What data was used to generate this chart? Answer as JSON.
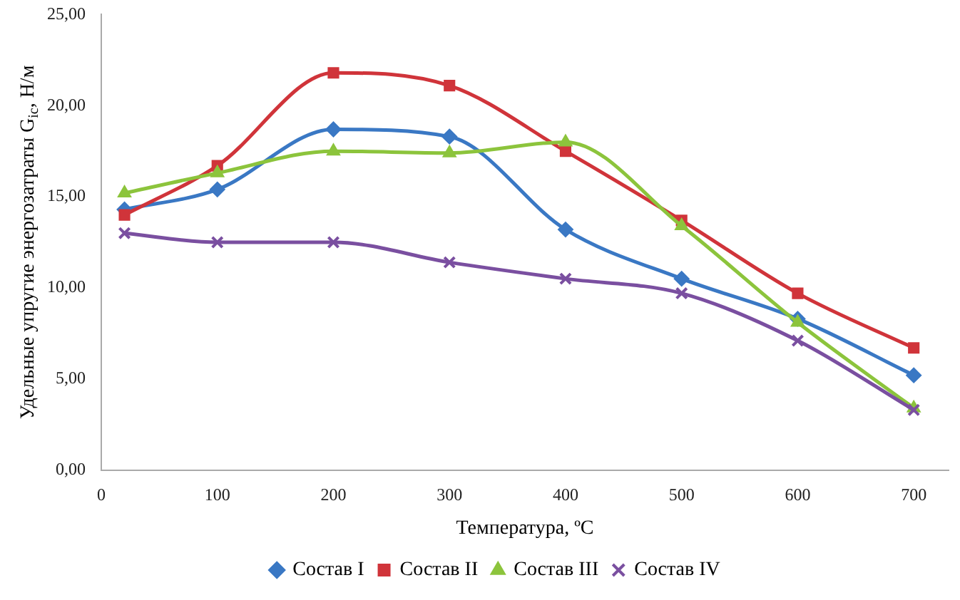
{
  "chart_data": {
    "type": "line",
    "xlabel": "Температура, ºC",
    "ylabel": "Удельные упругие энергозатраты G$_{ic}$, Н/м",
    "x": [
      20,
      100,
      200,
      300,
      400,
      500,
      600,
      700
    ],
    "series": [
      {
        "name": "Состав I",
        "color": "#3a78c4",
        "marker": "diamond",
        "values": [
          14.3,
          15.4,
          18.7,
          18.3,
          13.2,
          10.5,
          8.3,
          5.2
        ]
      },
      {
        "name": "Состав II",
        "color": "#d0343a",
        "marker": "square",
        "values": [
          14.0,
          16.7,
          21.8,
          21.1,
          17.5,
          13.7,
          9.7,
          6.7
        ]
      },
      {
        "name": "Состав III",
        "color": "#8cc43c",
        "marker": "triangle",
        "values": [
          15.2,
          16.3,
          17.5,
          17.4,
          18.0,
          13.4,
          8.1,
          3.4
        ]
      },
      {
        "name": "Состав IV",
        "color": "#7a4fa0",
        "marker": "cross",
        "values": [
          13.0,
          12.5,
          12.5,
          11.4,
          10.5,
          9.7,
          7.1,
          3.3
        ]
      }
    ],
    "xlim": [
      0,
      730
    ],
    "xticks": [
      0,
      100,
      200,
      300,
      400,
      500,
      600,
      700
    ],
    "ylim": [
      0,
      25
    ],
    "yticks": [
      {
        "value": 0,
        "label": "0,00"
      },
      {
        "value": 5,
        "label": "5,00"
      },
      {
        "value": 10,
        "label": "10,00"
      },
      {
        "value": 15,
        "label": "15,00"
      },
      {
        "value": 20,
        "label": "20,00"
      },
      {
        "value": 25,
        "label": "25,00"
      }
    ],
    "grid": false,
    "legend": "bottom"
  }
}
